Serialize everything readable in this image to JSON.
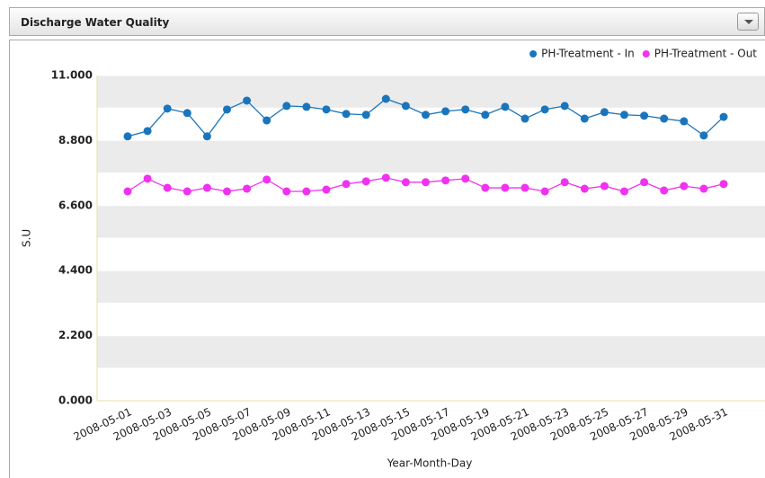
{
  "header": {
    "title": "Discharge Water Quality"
  },
  "chart_data": {
    "type": "line",
    "ylabel": "S.U",
    "xlabel": "Year-Month-Day",
    "categories": [
      "2008-05-01",
      null,
      "2008-05-03",
      null,
      "2008-05-05",
      null,
      "2008-05-07",
      null,
      "2008-05-09",
      null,
      "2008-05-11",
      null,
      "2008-05-13",
      null,
      "2008-05-15",
      null,
      "2008-05-17",
      null,
      "2008-05-19",
      null,
      "2008-05-21",
      null,
      "2008-05-23",
      null,
      "2008-05-25",
      null,
      "2008-05-27",
      null,
      "2008-05-29",
      null,
      "2008-05-31"
    ],
    "series": [
      {
        "name": "PH-Treatment - In",
        "color": "#1a75bc",
        "values": [
          8.94,
          9.12,
          9.88,
          9.73,
          8.94,
          9.85,
          10.15,
          9.48,
          9.97,
          9.94,
          9.85,
          9.7,
          9.67,
          10.21,
          9.97,
          9.67,
          9.79,
          9.85,
          9.67,
          9.94,
          9.54,
          9.85,
          9.97,
          9.54,
          9.76,
          9.67,
          9.64,
          9.54,
          9.45,
          8.97,
          9.6
        ]
      },
      {
        "name": "PH-Treatment - Out",
        "color": "#f032f0",
        "values": [
          7.08,
          7.51,
          7.2,
          7.08,
          7.2,
          7.08,
          7.17,
          7.48,
          7.08,
          7.08,
          7.14,
          7.33,
          7.42,
          7.54,
          7.39,
          7.39,
          7.45,
          7.51,
          7.2,
          7.2,
          7.2,
          7.08,
          7.39,
          7.17,
          7.26,
          7.08,
          7.39,
          7.11,
          7.26,
          7.17,
          7.33
        ]
      }
    ],
    "ylim": [
      0,
      11
    ],
    "yticks": [
      {
        "value": 0,
        "label": "0.000"
      },
      {
        "value": 2.2,
        "label": "2.200"
      },
      {
        "value": 4.4,
        "label": "4.400"
      },
      {
        "value": 6.6,
        "label": "6.600"
      },
      {
        "value": 8.8,
        "label": "8.800"
      },
      {
        "value": 11,
        "label": "11.000"
      }
    ],
    "grid": true,
    "legend": "top-right"
  }
}
